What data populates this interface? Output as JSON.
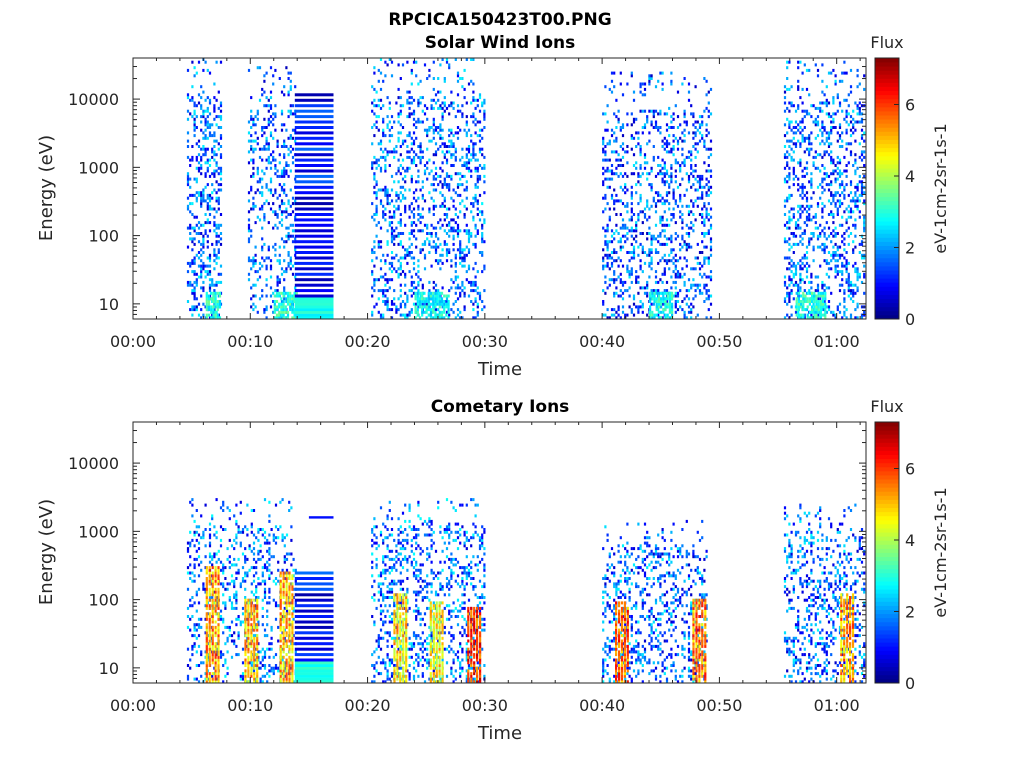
{
  "figure": {
    "main_title": "RPCICA150423T00.PNG"
  },
  "chart_data": [
    {
      "type": "heatmap",
      "title": "Solar Wind Ions",
      "xlabel": "Time",
      "ylabel": "Energy (eV)",
      "x_unit": "minutes since 00:00",
      "xlim": [
        0,
        62.5
      ],
      "ylim": [
        6,
        40000
      ],
      "y_scale": "log",
      "x_ticks": [
        0,
        10,
        20,
        30,
        40,
        50,
        60
      ],
      "x_tick_labels": [
        "00:00",
        "00:10",
        "00:20",
        "00:30",
        "00:40",
        "00:50",
        "01:00"
      ],
      "y_ticks": [
        10,
        100,
        1000,
        10000
      ],
      "y_tick_labels": [
        "10",
        "100",
        "1000",
        "10000"
      ],
      "colorbar": {
        "title": "Flux",
        "label": "eV-1cm-2sr-1s-1",
        "range": [
          0,
          7.3
        ],
        "ticks": [
          0,
          2,
          4,
          6
        ],
        "tick_labels": [
          "0",
          "2",
          "4",
          "6"
        ],
        "colormap": "jet"
      },
      "bursts": [
        {
          "start": 4.6,
          "end": 7.6,
          "e_low": 6,
          "e_high": 40000,
          "density": 0.55,
          "level": 1.5
        },
        {
          "start": 9.8,
          "end": 13.8,
          "e_low": 6,
          "e_high": 30000,
          "density": 0.4,
          "level": 1.4
        },
        {
          "start": 20.3,
          "end": 30.0,
          "e_low": 6,
          "e_high": 40000,
          "density": 0.45,
          "level": 1.5
        },
        {
          "start": 40.0,
          "end": 49.2,
          "e_low": 6,
          "e_high": 25000,
          "density": 0.45,
          "level": 1.4
        },
        {
          "start": 55.5,
          "end": 62.3,
          "e_low": 6,
          "e_high": 35000,
          "density": 0.5,
          "level": 1.5
        }
      ],
      "low_energy_hot": [
        {
          "start": 6.2,
          "end": 7.4,
          "level": 3.0
        },
        {
          "start": 12.0,
          "end": 14.0,
          "level": 3.0
        },
        {
          "start": 24.0,
          "end": 27.0,
          "level": 2.8
        },
        {
          "start": 44.0,
          "end": 46.0,
          "level": 2.8
        },
        {
          "start": 56.5,
          "end": 59.0,
          "level": 3.0
        }
      ],
      "stripe_block": {
        "start": 13.8,
        "end": 17.1,
        "e_low": 6,
        "e_high": 12500,
        "level": 1.0
      }
    },
    {
      "type": "heatmap",
      "title": "Cometary Ions",
      "xlabel": "Time",
      "ylabel": "Energy (eV)",
      "x_unit": "minutes since 00:00",
      "xlim": [
        0,
        62.5
      ],
      "ylim": [
        6,
        40000
      ],
      "y_scale": "log",
      "x_ticks": [
        0,
        10,
        20,
        30,
        40,
        50,
        60
      ],
      "x_tick_labels": [
        "00:00",
        "00:10",
        "00:20",
        "00:30",
        "00:40",
        "00:50",
        "01:00"
      ],
      "y_ticks": [
        10,
        100,
        1000,
        10000
      ],
      "y_tick_labels": [
        "10",
        "100",
        "1000",
        "10000"
      ],
      "colorbar": {
        "title": "Flux",
        "label": "eV-1cm-2sr-1s-1",
        "range": [
          0,
          7.3
        ],
        "ticks": [
          0,
          2,
          4,
          6
        ],
        "tick_labels": [
          "0",
          "2",
          "4",
          "6"
        ],
        "colormap": "jet"
      },
      "bursts": [
        {
          "start": 4.6,
          "end": 13.8,
          "e_low": 6,
          "e_high": 3000,
          "density": 0.4,
          "level": 1.6
        },
        {
          "start": 20.3,
          "end": 30.0,
          "e_low": 6,
          "e_high": 3000,
          "density": 0.45,
          "level": 1.6
        },
        {
          "start": 40.0,
          "end": 49.0,
          "e_low": 6,
          "e_high": 1500,
          "density": 0.45,
          "level": 1.5
        },
        {
          "start": 55.5,
          "end": 62.3,
          "e_low": 6,
          "e_high": 2500,
          "density": 0.45,
          "level": 1.5
        }
      ],
      "hot_columns": [
        {
          "time": 6.7,
          "e_high": 300,
          "level": 5.2
        },
        {
          "time": 10.0,
          "e_high": 100,
          "level": 5.0
        },
        {
          "time": 13.0,
          "e_high": 250,
          "level": 5.0
        },
        {
          "time": 22.7,
          "e_high": 120,
          "level": 4.8
        },
        {
          "time": 25.8,
          "e_high": 90,
          "level": 4.6
        },
        {
          "time": 29.0,
          "e_high": 80,
          "level": 6.0
        },
        {
          "time": 41.6,
          "e_high": 90,
          "level": 5.6
        },
        {
          "time": 48.2,
          "e_high": 100,
          "level": 5.4
        },
        {
          "time": 60.8,
          "e_high": 120,
          "level": 5.2
        }
      ],
      "stripe_block": {
        "start": 13.8,
        "end": 17.1,
        "e_low": 6,
        "e_high": 250,
        "level": 1.0
      },
      "high_line": {
        "start": 15.0,
        "end": 17.1,
        "energy": 1600,
        "level": 1.0
      }
    }
  ]
}
